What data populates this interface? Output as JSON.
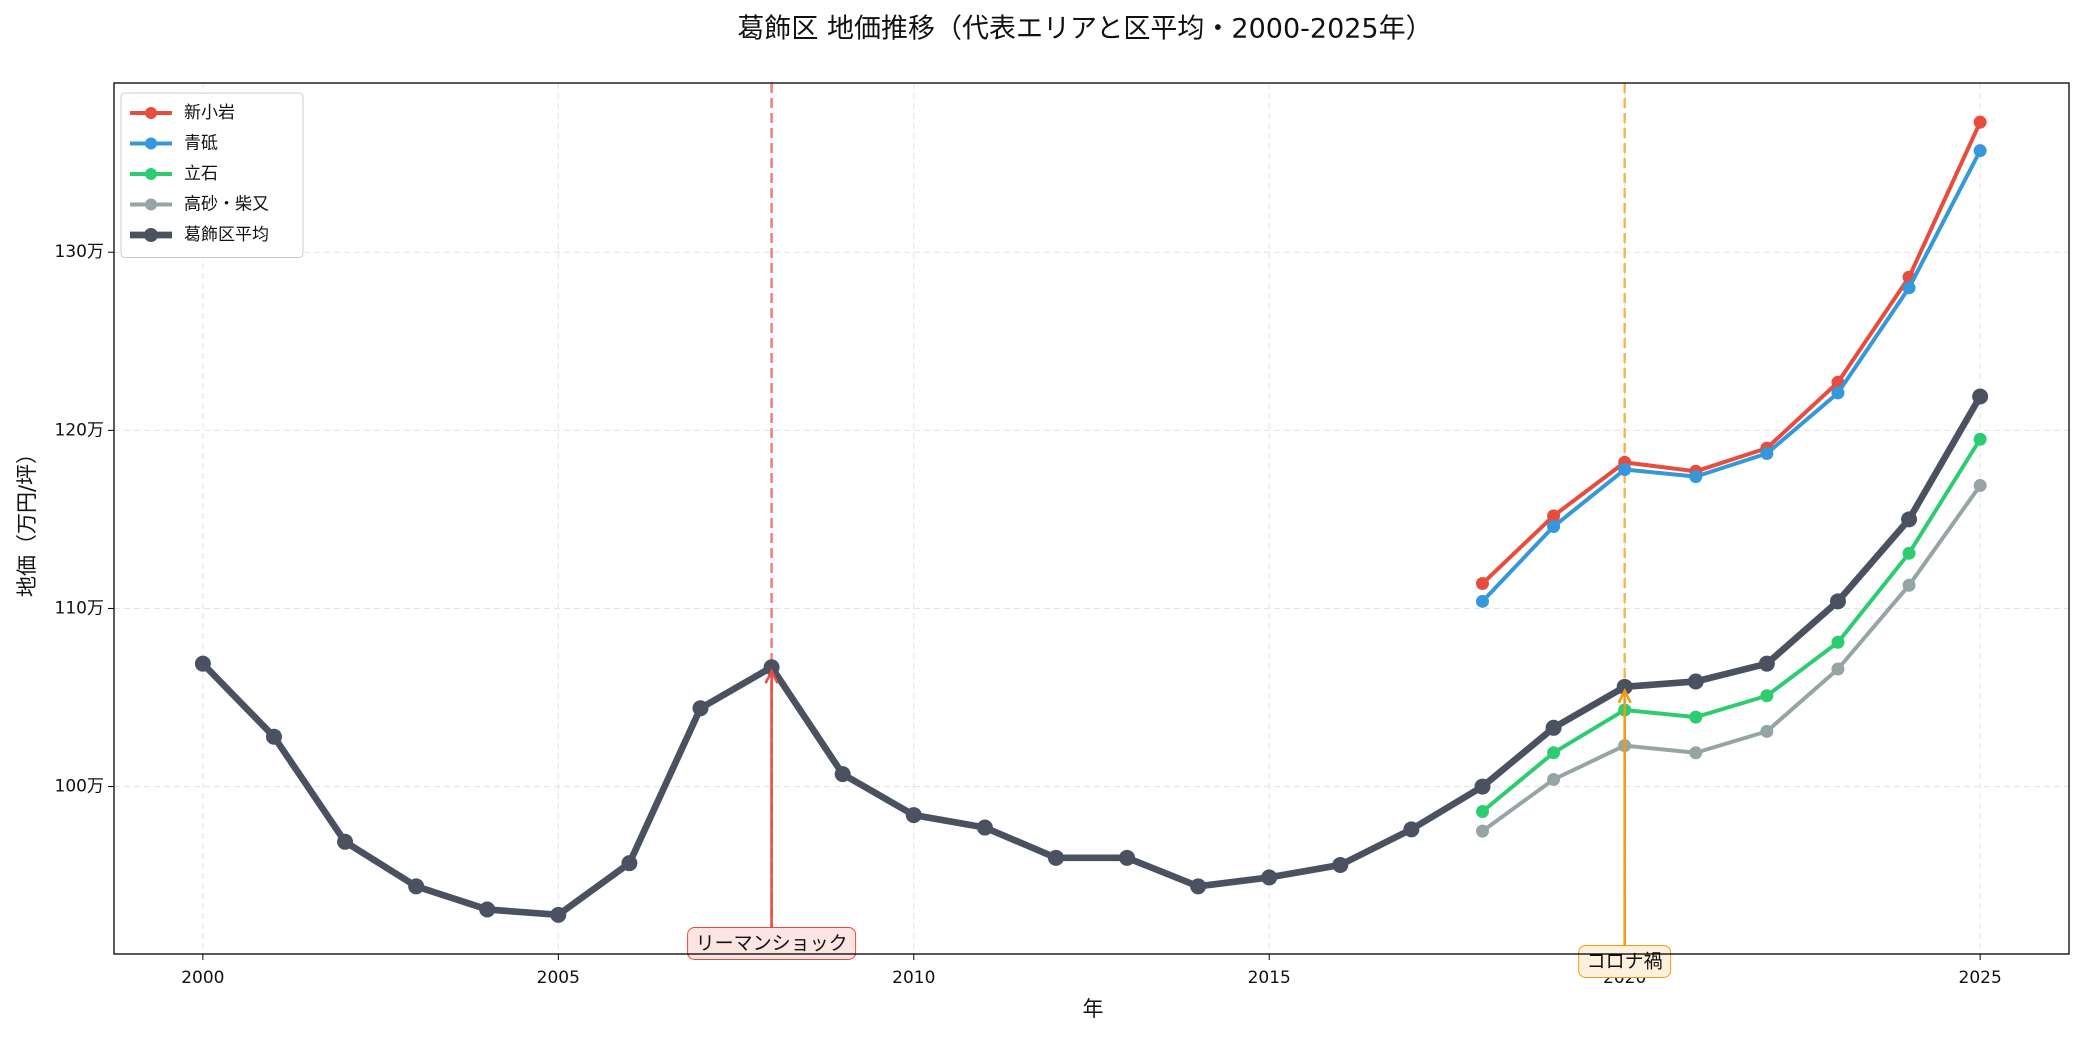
{
  "chart_data": {
    "type": "line",
    "title": "葛飾区 地価推移（代表エリアと区平均・2000-2025年）",
    "x_label": "年",
    "y_label": "地価（万円/坪）",
    "x": [
      2000,
      2001,
      2002,
      2003,
      2004,
      2005,
      2006,
      2007,
      2008,
      2009,
      2010,
      2011,
      2012,
      2013,
      2014,
      2015,
      2016,
      2017,
      2018,
      2019,
      2020,
      2021,
      2022,
      2023,
      2024,
      2025
    ],
    "series": [
      {
        "name": "新小岩",
        "color": "#e74c3c",
        "width": 3,
        "values": [
          null,
          null,
          null,
          null,
          null,
          null,
          null,
          null,
          null,
          null,
          null,
          null,
          null,
          null,
          null,
          null,
          null,
          null,
          1114000,
          1152000,
          1182000,
          1177000,
          1190000,
          1227000,
          1286000,
          1373000
        ]
      },
      {
        "name": "青砥",
        "color": "#3498db",
        "width": 3,
        "values": [
          null,
          null,
          null,
          null,
          null,
          null,
          null,
          null,
          null,
          null,
          null,
          null,
          null,
          null,
          null,
          null,
          null,
          null,
          1104000,
          1146000,
          1178000,
          1174000,
          1187000,
          1221000,
          1280000,
          1357000
        ]
      },
      {
        "name": "立石",
        "color": "#2ecc71",
        "width": 3,
        "values": [
          null,
          null,
          null,
          null,
          null,
          null,
          null,
          null,
          null,
          null,
          null,
          null,
          null,
          null,
          null,
          null,
          null,
          null,
          986000,
          1019000,
          1043000,
          1039000,
          1051000,
          1081000,
          1131000,
          1195000
        ]
      },
      {
        "name": "高砂・柴又",
        "color": "#95a5a6",
        "width": 3,
        "values": [
          null,
          null,
          null,
          null,
          null,
          null,
          null,
          null,
          null,
          null,
          null,
          null,
          null,
          null,
          null,
          null,
          null,
          null,
          975000,
          1004000,
          1023000,
          1019000,
          1031000,
          1066000,
          1113000,
          1169000
        ]
      },
      {
        "name": "葛飾区平均",
        "color": "#4a5261",
        "width": 5,
        "values": [
          1069000,
          1028000,
          969000,
          944000,
          931000,
          928000,
          957000,
          1044000,
          1067000,
          1007000,
          984000,
          977000,
          960000,
          960000,
          944000,
          949000,
          956000,
          976000,
          1000000,
          1033000,
          1056000,
          1059000,
          1069000,
          1104000,
          1150000,
          1219000
        ]
      }
    ],
    "annotations": [
      {
        "text": "リーマンショック",
        "x": 2008,
        "color": "#e74c3c"
      },
      {
        "text": "コロナ禍",
        "x": 2020,
        "color": "#f39c12"
      }
    ],
    "xlim": [
      1998.75,
      2026.25
    ],
    "xticks": [
      2000,
      2005,
      2010,
      2015,
      2020,
      2025
    ],
    "ylim": [
      906000,
      1395000
    ],
    "yticks": [
      {
        "value": 1000000,
        "label": "100万"
      },
      {
        "value": 1100000,
        "label": "110万"
      },
      {
        "value": 1200000,
        "label": "120万"
      },
      {
        "value": 1300000,
        "label": "130万"
      }
    ],
    "grid": true,
    "legend": "upper left"
  }
}
